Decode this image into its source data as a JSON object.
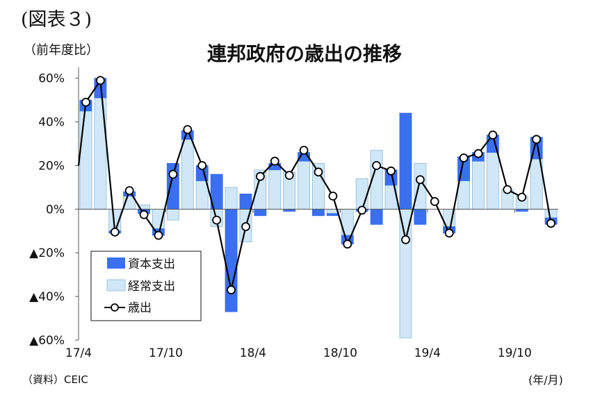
{
  "header": {
    "figure_label": "(図表３)",
    "unit": "（前年度比）",
    "title": "連邦政府の歳出の推移"
  },
  "footer": {
    "source": "（資料）CEIC",
    "x_unit": "(年/月)"
  },
  "colors": {
    "capital": "#3a6ff0",
    "current": "#cfe7f7",
    "current_stroke": "#8fb7d6",
    "line": "#000000"
  },
  "chart_data": {
    "type": "bar",
    "stacked": true,
    "title": "連邦政府の歳出の推移",
    "ylabel": "（前年度比）",
    "xlabel": "(年/月)",
    "ylim": [
      -60,
      65
    ],
    "yticks": [
      {
        "value": 60,
        "label": "60%"
      },
      {
        "value": 40,
        "label": "40%"
      },
      {
        "value": 20,
        "label": "20%"
      },
      {
        "value": 0,
        "label": "0%"
      },
      {
        "value": -20,
        "label": "▲20%"
      },
      {
        "value": -40,
        "label": "▲40%"
      },
      {
        "value": -60,
        "label": "▲60%"
      }
    ],
    "xticks": [
      {
        "index": 0,
        "label": "17/4"
      },
      {
        "index": 6,
        "label": "17/10"
      },
      {
        "index": 12,
        "label": "18/4"
      },
      {
        "index": 18,
        "label": "18/10"
      },
      {
        "index": 24,
        "label": "19/4"
      },
      {
        "index": 30,
        "label": "19/10"
      }
    ],
    "categories": [
      "2017/4",
      "2017/5",
      "2017/6",
      "2017/7",
      "2017/8",
      "2017/9",
      "2017/10",
      "2017/11",
      "2017/12",
      "2018/1",
      "2018/2",
      "2018/3",
      "2018/4",
      "2018/5",
      "2018/6",
      "2018/7",
      "2018/8",
      "2018/9",
      "2018/10",
      "2018/11",
      "2018/12",
      "2019/1",
      "2019/2",
      "2019/3",
      "2019/4",
      "2019/5",
      "2019/6",
      "2019/7",
      "2019/8",
      "2019/9",
      "2019/10",
      "2019/11",
      "2019/12"
    ],
    "series": [
      {
        "name": "資本支出",
        "type": "bar",
        "values": [
          5,
          9,
          -1,
          2,
          -2,
          -3,
          21,
          4,
          7,
          16,
          -47,
          7,
          -3,
          3,
          -1,
          4,
          -3,
          -1,
          -4,
          -1,
          -7,
          7,
          44,
          -7,
          0,
          -3,
          11,
          4,
          8,
          0,
          -1,
          10,
          -3
        ]
      },
      {
        "name": "経常支出",
        "type": "bar",
        "values": [
          45,
          51,
          -10,
          6,
          2,
          -9,
          -5,
          32,
          13,
          -8,
          10,
          -15,
          18,
          18,
          17,
          22,
          21,
          -2,
          -12,
          14,
          27,
          11,
          -59,
          21,
          0,
          -8,
          13,
          22,
          26,
          9,
          6,
          23,
          -4
        ]
      },
      {
        "name": "歳出",
        "type": "line",
        "values": [
          49,
          59,
          -10.5,
          8.5,
          -2.5,
          -12,
          16,
          36.5,
          20,
          -5,
          -37,
          -8,
          15,
          22,
          15.5,
          27,
          17,
          6,
          -16,
          -0.5,
          20,
          17.5,
          -14,
          13.5,
          3.5,
          -11,
          23.5,
          25.5,
          34,
          9,
          5.5,
          32,
          -6.5
        ]
      }
    ],
    "legend": {
      "position": "bottom-left"
    },
    "grid": false
  }
}
